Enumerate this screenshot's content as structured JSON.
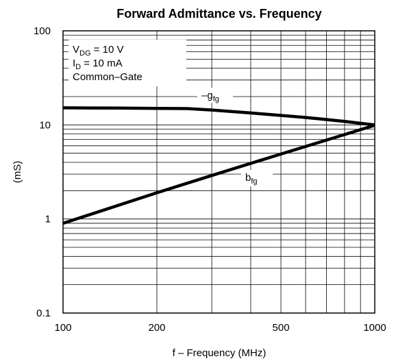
{
  "chart_data": {
    "type": "line",
    "title": "Forward Admittance vs. Frequency",
    "xlabel": "f – Frequency (MHz)",
    "ylabel": "(mS)",
    "x_scale": "log",
    "y_scale": "log",
    "xlim": [
      100,
      1000
    ],
    "ylim": [
      0.1,
      100
    ],
    "grid": true,
    "x_ticks": [
      {
        "value": 100,
        "label": "100"
      },
      {
        "value": 200,
        "label": "200"
      },
      {
        "value": 500,
        "label": "500"
      },
      {
        "value": 1000,
        "label": "1000"
      }
    ],
    "y_ticks": [
      {
        "value": 0.1,
        "label": "0.1"
      },
      {
        "value": 1,
        "label": "1"
      },
      {
        "value": 10,
        "label": "10"
      },
      {
        "value": 100,
        "label": "100"
      }
    ],
    "conditions": {
      "line1_main": "V",
      "line1_sub": "DG",
      "line1_rest": " = 10 V",
      "line2_main": "I",
      "line2_sub": "D",
      "line2_rest": " = 10 mA",
      "line3": "Common–Gate"
    },
    "series": [
      {
        "name_main": "–g",
        "name_sub": "fg",
        "x": [
          100,
          150,
          200,
          250,
          300,
          400,
          500,
          600,
          700,
          800,
          900,
          1000
        ],
        "y": [
          15.2,
          15.1,
          15.0,
          14.9,
          14.4,
          13.4,
          12.6,
          12.0,
          11.4,
          10.9,
          10.4,
          10.0
        ]
      },
      {
        "name_main": "b",
        "name_sub": "fg",
        "x": [
          100,
          200,
          300,
          400,
          500,
          700,
          1000
        ],
        "y": [
          0.9,
          1.9,
          2.9,
          3.9,
          4.9,
          6.9,
          9.9
        ]
      }
    ]
  }
}
